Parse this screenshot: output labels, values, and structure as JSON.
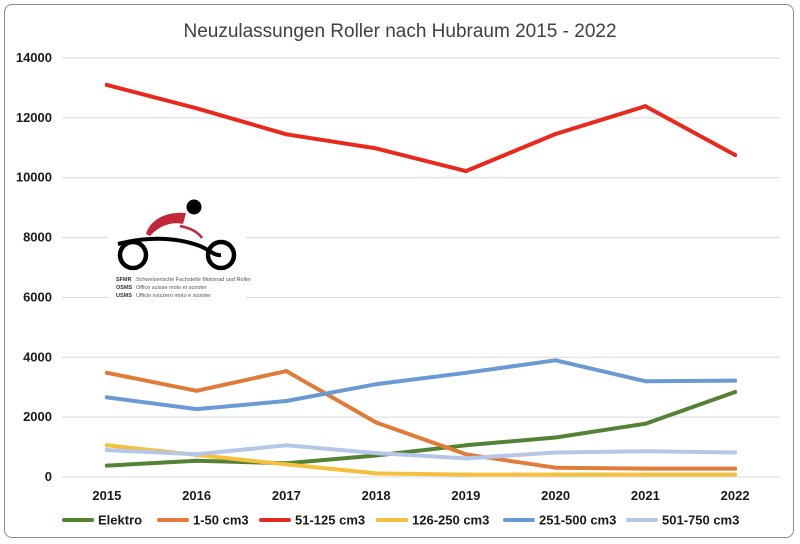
{
  "chart_data": {
    "type": "line",
    "title": "Neuzulassungen Roller nach Hubraum 2015 - 2022",
    "xlabel": "",
    "ylabel": "",
    "x": [
      "2015",
      "2016",
      "2017",
      "2018",
      "2019",
      "2020",
      "2021",
      "2022"
    ],
    "ylim": [
      0,
      14000
    ],
    "yticks": [
      0,
      2000,
      4000,
      6000,
      8000,
      10000,
      12000,
      14000
    ],
    "grid": true,
    "legend": "bottom",
    "series": [
      {
        "name": "Elektro",
        "color": "#548235",
        "values": [
          380,
          540,
          460,
          720,
          1060,
          1320,
          1780,
          2840
        ]
      },
      {
        "name": "1-50 cm3",
        "color": "#e07b39",
        "values": [
          3480,
          2880,
          3540,
          1820,
          760,
          310,
          280,
          280
        ]
      },
      {
        "name": "51-125 cm3",
        "color": "#e8291c",
        "values": [
          13100,
          12320,
          11450,
          10980,
          10220,
          11460,
          12390,
          10760
        ]
      },
      {
        "name": "126-250 cm3",
        "color": "#f5c03d",
        "values": [
          1060,
          740,
          420,
          120,
          80,
          80,
          80,
          80
        ]
      },
      {
        "name": "251-500 cm3",
        "color": "#6a9ad3",
        "values": [
          2660,
          2270,
          2540,
          3100,
          3480,
          3900,
          3200,
          3220
        ]
      },
      {
        "name": "501-750 cm3",
        "color": "#b4c7e7",
        "values": [
          900,
          760,
          1060,
          800,
          620,
          820,
          860,
          820
        ]
      }
    ]
  },
  "logo": {
    "acronyms": [
      "SFMR",
      "OSMS",
      "USMS"
    ],
    "names": [
      "Schweizerische Fachstelle Motorrad und Roller",
      "Office suisse moto et scooter",
      "Ufficio svizzero moto e scooter"
    ],
    "colors": {
      "accent": "#c0283a",
      "dark": "#000000"
    }
  }
}
